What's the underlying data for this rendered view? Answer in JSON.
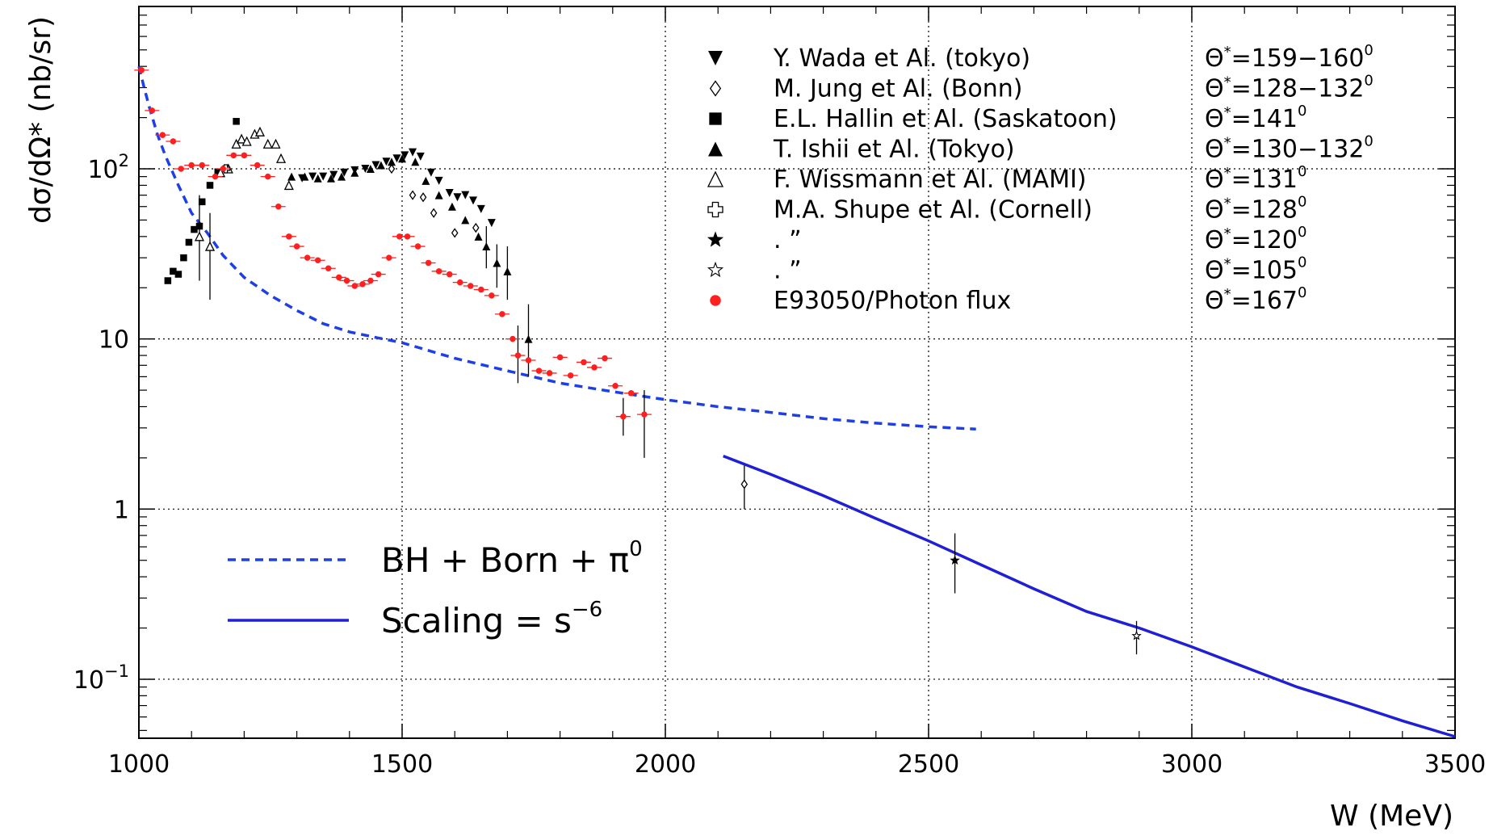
{
  "chart_data": {
    "type": "scatter",
    "xlabel": "W (MeV)",
    "ylabel": "dσ/dΩ* (nb/sr)",
    "xlim": [
      1000,
      3500
    ],
    "ylim": [
      0.045,
      900
    ],
    "yscale": "log",
    "grid": true,
    "x_ticks": [
      {
        "value": 1000,
        "label": "1000"
      },
      {
        "value": 1500,
        "label": "1500"
      },
      {
        "value": 2000,
        "label": "2000"
      },
      {
        "value": 2500,
        "label": "2500"
      },
      {
        "value": 3000,
        "label": "3000"
      },
      {
        "value": 3500,
        "label": "3500"
      }
    ],
    "y_ticks": [
      {
        "value": 0.1,
        "base": "10",
        "exp": "−1"
      },
      {
        "value": 1,
        "base": "1",
        "exp": ""
      },
      {
        "value": 10,
        "base": "10",
        "exp": ""
      },
      {
        "value": 100,
        "base": "10",
        "exp": "2"
      }
    ],
    "series": [
      {
        "name": "Y. Wada et Al. (tokyo)",
        "angle": "159−160",
        "marker": "tri-down-filled",
        "points": [
          [
            1310,
            88
          ],
          [
            1330,
            90
          ],
          [
            1350,
            90
          ],
          [
            1370,
            92
          ],
          [
            1390,
            95
          ],
          [
            1410,
            98
          ],
          [
            1430,
            100
          ],
          [
            1450,
            105
          ],
          [
            1470,
            110
          ],
          [
            1490,
            115
          ],
          [
            1505,
            120
          ],
          [
            1520,
            125
          ],
          [
            1535,
            118
          ],
          [
            1555,
            95
          ],
          [
            1570,
            85
          ],
          [
            1590,
            72
          ],
          [
            1605,
            68
          ],
          [
            1620,
            70
          ],
          [
            1635,
            65
          ],
          [
            1650,
            58
          ],
          [
            1670,
            48
          ]
        ]
      },
      {
        "name": "M. Jung et Al. (Bonn)",
        "angle": "128−132",
        "marker": "diamond-open",
        "points": [
          [
            1480,
            100
          ],
          [
            1520,
            70
          ],
          [
            1540,
            68
          ],
          [
            1560,
            55
          ],
          [
            1600,
            42
          ],
          [
            1640,
            45
          ],
          [
            2150,
            1.4
          ]
        ]
      },
      {
        "name": "E.L. Hallin et Al. (Saskatoon)",
        "angle": "141",
        "marker": "square-filled",
        "points": [
          [
            1055,
            22
          ],
          [
            1065,
            25
          ],
          [
            1075,
            24
          ],
          [
            1085,
            30
          ],
          [
            1095,
            37
          ],
          [
            1105,
            44
          ],
          [
            1115,
            46
          ],
          [
            1120,
            64
          ],
          [
            1135,
            80
          ],
          [
            1150,
            96
          ],
          [
            1165,
            100
          ],
          [
            1185,
            190
          ]
        ]
      },
      {
        "name": "T. Ishii et Al. (Tokyo)",
        "angle": "130−132",
        "marker": "tri-up-filled",
        "points": [
          [
            1290,
            90
          ],
          [
            1315,
            90
          ],
          [
            1340,
            88
          ],
          [
            1365,
            88
          ],
          [
            1385,
            90
          ],
          [
            1410,
            95
          ],
          [
            1440,
            100
          ],
          [
            1460,
            105
          ],
          [
            1480,
            110
          ],
          [
            1500,
            115
          ],
          [
            1525,
            110
          ],
          [
            1545,
            85
          ],
          [
            1570,
            70
          ],
          [
            1595,
            60
          ],
          [
            1620,
            50
          ],
          [
            1645,
            40
          ],
          [
            1660,
            35
          ],
          [
            1680,
            28
          ],
          [
            1700,
            25
          ],
          [
            1740,
            10
          ]
        ]
      },
      {
        "name": "F. Wissmann et Al. (MAMI)",
        "angle": "131",
        "marker": "tri-up-open",
        "points": [
          [
            1115,
            40
          ],
          [
            1135,
            35
          ],
          [
            1155,
            95
          ],
          [
            1170,
            100
          ],
          [
            1185,
            140
          ],
          [
            1195,
            150
          ],
          [
            1205,
            145
          ],
          [
            1220,
            160
          ],
          [
            1230,
            165
          ],
          [
            1245,
            140
          ],
          [
            1260,
            140
          ],
          [
            1270,
            115
          ],
          [
            1285,
            80
          ]
        ]
      },
      {
        "name": "M.A. Shupe et Al. (Cornell)",
        "angle": "128",
        "marker": "cross-open",
        "points": [
          [
            1165,
            100
          ]
        ]
      },
      {
        "name": ".          ”",
        "angle": "120",
        "marker": "star-filled",
        "points": [
          [
            2550,
            0.5
          ]
        ]
      },
      {
        "name": ".          ”",
        "angle": "105",
        "marker": "star-open",
        "points": [
          [
            2895,
            0.18
          ]
        ]
      },
      {
        "name": "E93050/Photon flux",
        "angle": "167",
        "marker": "circle-red",
        "points": [
          [
            1005,
            380
          ],
          [
            1025,
            220
          ],
          [
            1045,
            158
          ],
          [
            1065,
            145
          ],
          [
            1080,
            100
          ],
          [
            1100,
            105
          ],
          [
            1120,
            105
          ],
          [
            1145,
            90
          ],
          [
            1160,
            100
          ],
          [
            1180,
            120
          ],
          [
            1200,
            120
          ],
          [
            1225,
            105
          ],
          [
            1245,
            90
          ],
          [
            1265,
            60
          ],
          [
            1285,
            40
          ],
          [
            1300,
            35
          ],
          [
            1320,
            30
          ],
          [
            1340,
            29
          ],
          [
            1360,
            26
          ],
          [
            1380,
            23
          ],
          [
            1395,
            22
          ],
          [
            1410,
            20.5
          ],
          [
            1425,
            21
          ],
          [
            1440,
            22
          ],
          [
            1455,
            24
          ],
          [
            1475,
            30
          ],
          [
            1495,
            40
          ],
          [
            1510,
            40
          ],
          [
            1530,
            35
          ],
          [
            1550,
            28
          ],
          [
            1570,
            25
          ],
          [
            1590,
            24
          ],
          [
            1610,
            21.5
          ],
          [
            1630,
            20.5
          ],
          [
            1650,
            19.5
          ],
          [
            1670,
            18
          ],
          [
            1690,
            14
          ],
          [
            1710,
            10
          ],
          [
            1720,
            8
          ],
          [
            1740,
            7.5
          ],
          [
            1760,
            6.5
          ],
          [
            1780,
            6.3
          ],
          [
            1800,
            7.8
          ],
          [
            1820,
            6.1
          ],
          [
            1845,
            7.3
          ],
          [
            1865,
            6.8
          ],
          [
            1885,
            7.7
          ],
          [
            1905,
            5.3
          ],
          [
            1920,
            3.5
          ],
          [
            1935,
            4.8
          ],
          [
            1960,
            3.6
          ]
        ]
      }
    ],
    "curves": [
      {
        "name": "BH + Born + π0",
        "style": "dashed",
        "color": "#1f3fe6",
        "points": [
          [
            1000,
            400
          ],
          [
            1010,
            300
          ],
          [
            1020,
            230
          ],
          [
            1035,
            160
          ],
          [
            1050,
            120
          ],
          [
            1075,
            80
          ],
          [
            1100,
            55
          ],
          [
            1130,
            42
          ],
          [
            1160,
            31
          ],
          [
            1200,
            23
          ],
          [
            1250,
            18
          ],
          [
            1300,
            14.7
          ],
          [
            1350,
            12.3
          ],
          [
            1400,
            11
          ],
          [
            1450,
            10.2
          ],
          [
            1500,
            9.5
          ],
          [
            1600,
            7.7
          ],
          [
            1700,
            6.5
          ],
          [
            1800,
            5.5
          ],
          [
            1900,
            4.9
          ],
          [
            2000,
            4.4
          ],
          [
            2100,
            4
          ],
          [
            2200,
            3.7
          ],
          [
            2300,
            3.4
          ],
          [
            2400,
            3.2
          ],
          [
            2500,
            3.05
          ],
          [
            2590,
            2.95
          ]
        ]
      },
      {
        "name": "Scaling = s−6",
        "style": "solid",
        "color": "#1f1fd6",
        "points": [
          [
            2110,
            2.05
          ],
          [
            2200,
            1.6
          ],
          [
            2300,
            1.2
          ],
          [
            2400,
            0.88
          ],
          [
            2500,
            0.65
          ],
          [
            2600,
            0.47
          ],
          [
            2700,
            0.34
          ],
          [
            2800,
            0.25
          ],
          [
            2900,
            0.2
          ],
          [
            3000,
            0.155
          ],
          [
            3100,
            0.118
          ],
          [
            3200,
            0.09
          ],
          [
            3300,
            0.072
          ],
          [
            3400,
            0.057
          ],
          [
            3500,
            0.046
          ]
        ]
      }
    ],
    "error_bars": [
      {
        "x": 1115,
        "lo": 22,
        "hi": 70
      },
      {
        "x": 1135,
        "lo": 17,
        "hi": 55
      },
      {
        "x": 1960,
        "lo": 2,
        "hi": 5
      },
      {
        "x": 1920,
        "lo": 2.7,
        "hi": 4.5
      },
      {
        "x": 1700,
        "lo": 17,
        "hi": 35
      },
      {
        "x": 1720,
        "lo": 5.5,
        "hi": 12
      },
      {
        "x": 1740,
        "lo": 6,
        "hi": 16
      },
      {
        "x": 1680,
        "lo": 20,
        "hi": 36
      },
      {
        "x": 1660,
        "lo": 26,
        "hi": 46
      },
      {
        "x": 2150,
        "lo": 1.0,
        "hi": 1.8
      },
      {
        "x": 2550,
        "lo": 0.32,
        "hi": 0.72
      },
      {
        "x": 2895,
        "lo": 0.14,
        "hi": 0.22
      }
    ],
    "legend_angle_prefix": "Θ*=",
    "legend_angle_unit": "0",
    "big_legend": [
      {
        "label": "BH + Born + π",
        "sup": "0",
        "style": "dashed"
      },
      {
        "label": "Scaling = s",
        "sup": "−6",
        "style": "solid"
      }
    ],
    "legend_position": "top-right"
  },
  "colors": {
    "bh_curve": "#1f3fe6",
    "scaling_curve": "#1f1fd6",
    "e93050": "#ff1f1f",
    "grid": "#000000"
  }
}
